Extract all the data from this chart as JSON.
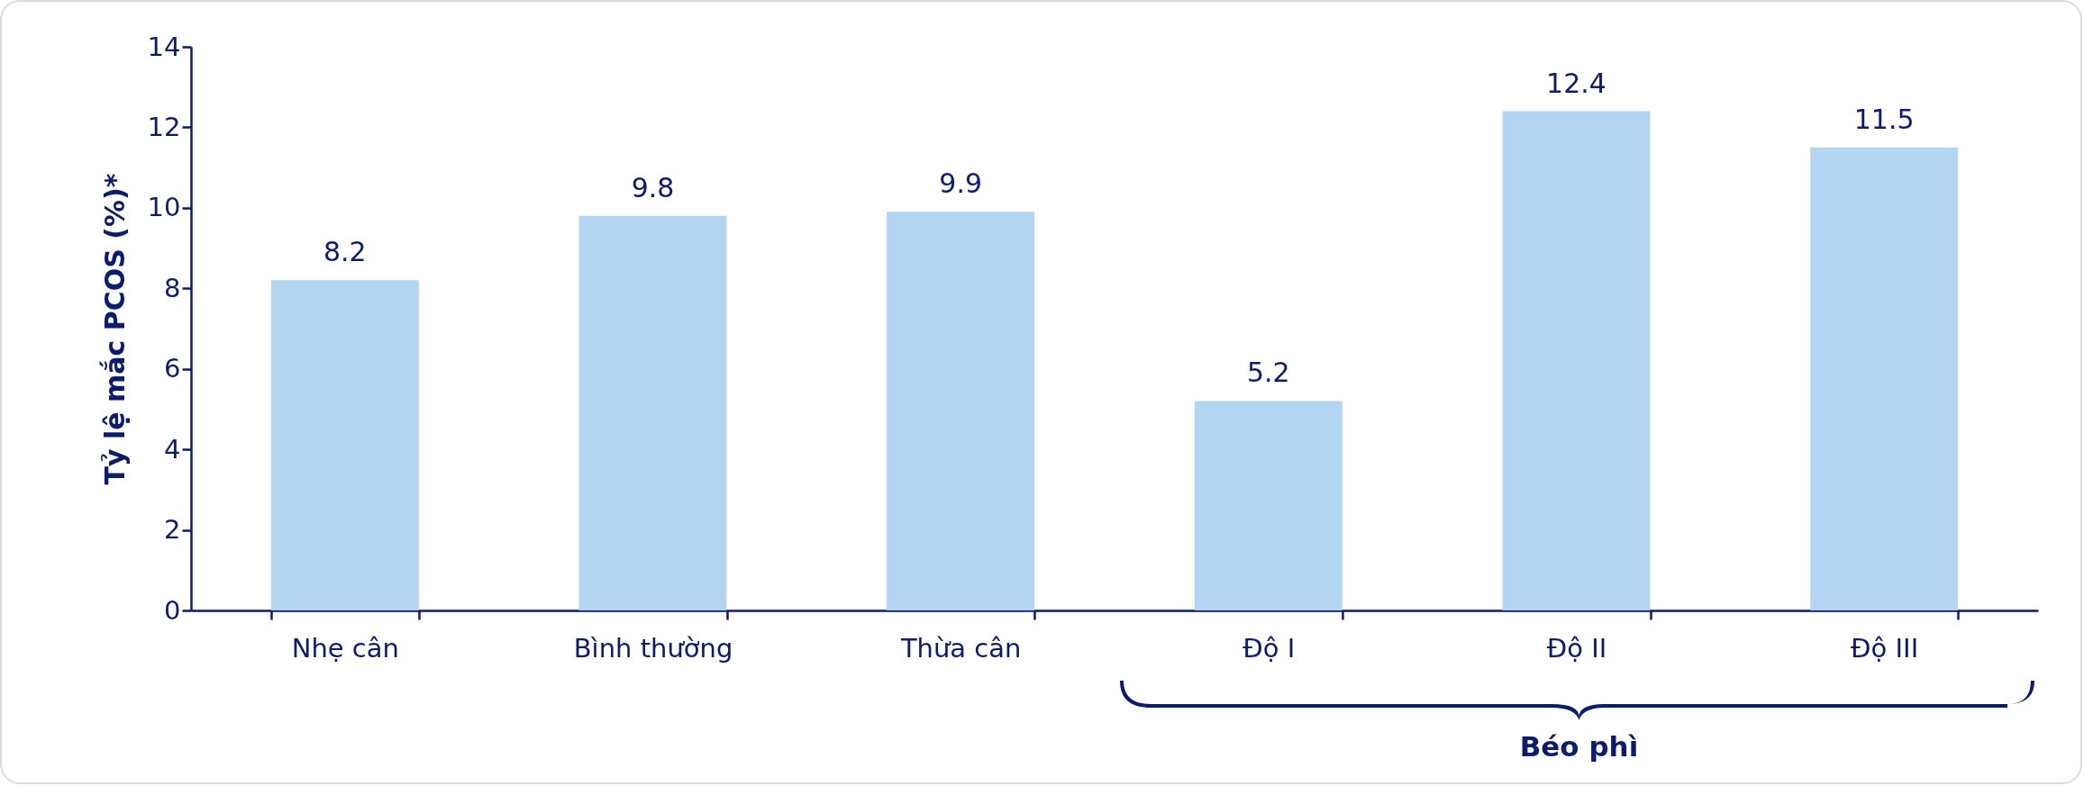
{
  "chart_data": {
    "type": "bar",
    "categories": [
      "Nhẹ cân",
      "Bình thường",
      "Thừa cân",
      "Độ I",
      "Độ II",
      "Độ III"
    ],
    "values": [
      8.2,
      9.8,
      9.9,
      5.2,
      12.4,
      11.5
    ],
    "color": "#b3d5f2",
    "ylabel": "Tỷ lệ mắc PCOS (%)*",
    "ylim": [
      0,
      14
    ],
    "yticks": [
      0,
      2,
      4,
      6,
      8,
      10,
      12,
      14
    ],
    "data_labels": true,
    "grid": false,
    "annotations": [
      "Béo phì"
    ]
  }
}
